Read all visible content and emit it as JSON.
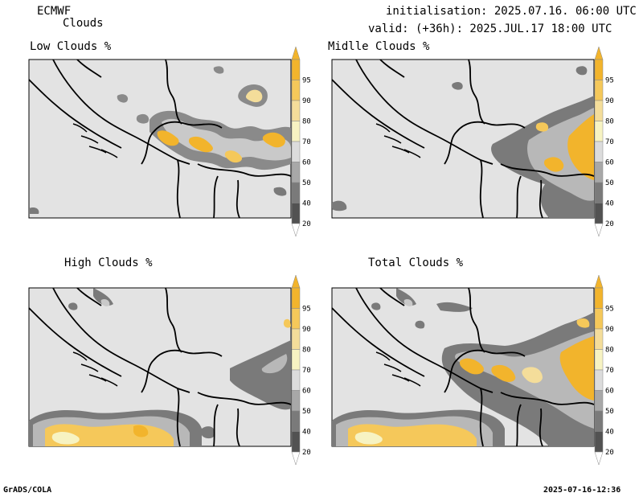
{
  "header": {
    "model": "ECMWF",
    "product": "Clouds",
    "init_line": "initialisation: 2025.07.16. 06:00 UTC",
    "valid_line": "valid: (+36h): 2025.JUL.17 18:00 UTC"
  },
  "panels": [
    {
      "title": "Low Clouds %"
    },
    {
      "title": "Midlle Clouds %"
    },
    {
      "title": "High Clouds %"
    },
    {
      "title": "Total Clouds %"
    }
  ],
  "legend": {
    "ticks": [
      "95",
      "90",
      "80",
      "70",
      "60",
      "50",
      "40",
      "20"
    ],
    "colors": [
      "#f2b42c",
      "#f5c85a",
      "#f4dd9a",
      "#f7f3c2",
      "#dcdcdc",
      "#a8a8a8",
      "#7a7a7a",
      "#525252"
    ]
  },
  "footer": {
    "left": "GrADS/COLA",
    "right": "2025-07-16-12:36"
  },
  "colors": {
    "background_fill": "#e3e3e3",
    "boundary": "#000000"
  }
}
